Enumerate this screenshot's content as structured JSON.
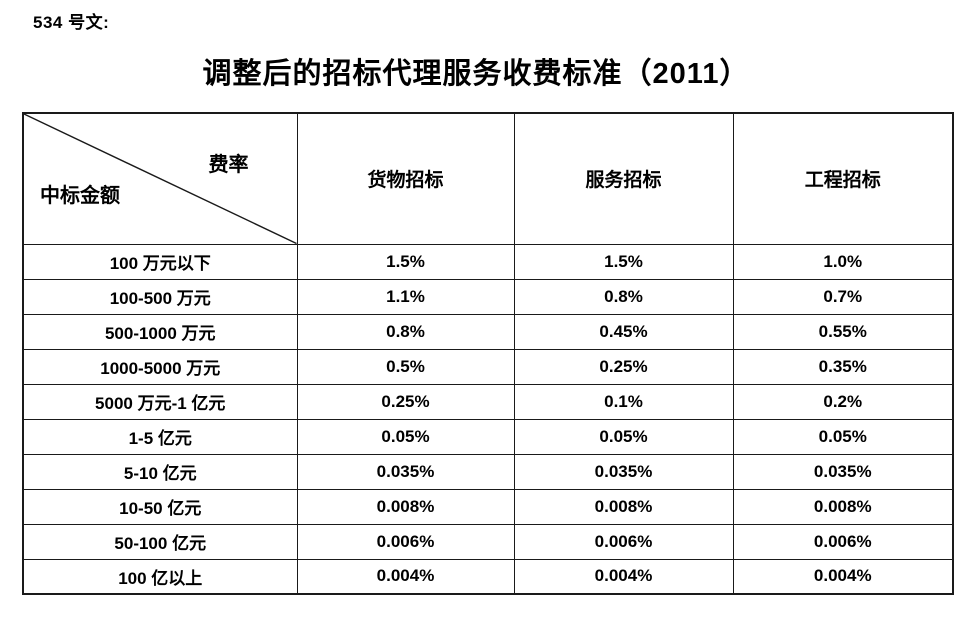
{
  "doc_label": "534 号文:",
  "title": "调整后的招标代理服务收费标准（2011）",
  "table": {
    "corner": {
      "top_right": "费率",
      "bottom_left": "中标金额"
    },
    "columns": [
      "货物招标",
      "服务招标",
      "工程招标"
    ],
    "rows": [
      {
        "amount": "100 万元以下",
        "values": [
          "1.5%",
          "1.5%",
          "1.0%"
        ]
      },
      {
        "amount": "100-500 万元",
        "values": [
          "1.1%",
          "0.8%",
          "0.7%"
        ]
      },
      {
        "amount": "500-1000 万元",
        "values": [
          "0.8%",
          "0.45%",
          "0.55%"
        ]
      },
      {
        "amount": "1000-5000 万元",
        "values": [
          "0.5%",
          "0.25%",
          "0.35%"
        ]
      },
      {
        "amount": "5000 万元-1 亿元",
        "values": [
          "0.25%",
          "0.1%",
          "0.2%"
        ]
      },
      {
        "amount": "1-5 亿元",
        "values": [
          "0.05%",
          "0.05%",
          "0.05%"
        ]
      },
      {
        "amount": "5-10 亿元",
        "values": [
          "0.035%",
          "0.035%",
          "0.035%"
        ]
      },
      {
        "amount": "10-50 亿元",
        "values": [
          "0.008%",
          "0.008%",
          "0.008%"
        ]
      },
      {
        "amount": "50-100 亿元",
        "values": [
          "0.006%",
          "0.006%",
          "0.006%"
        ]
      },
      {
        "amount": "100 亿以上",
        "values": [
          "0.004%",
          "0.004%",
          "0.004%"
        ]
      }
    ]
  },
  "colors": {
    "text": "#000000",
    "border": "#1a1a1a",
    "background": "#ffffff"
  }
}
